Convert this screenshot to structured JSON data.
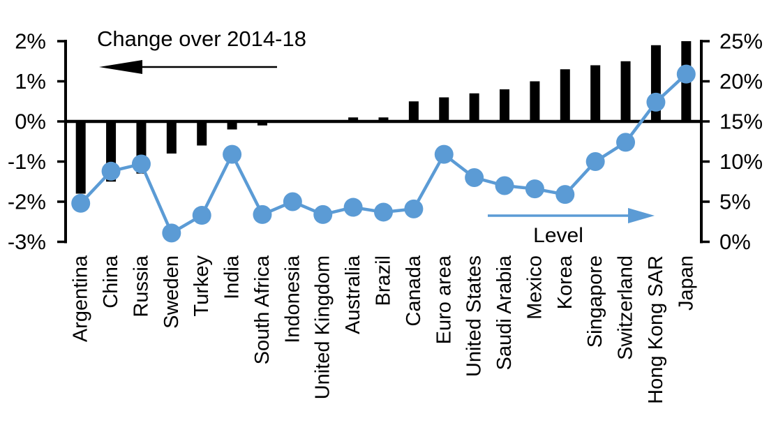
{
  "chart_data": {
    "type": "combo-bar-line-dual-axis",
    "title": "",
    "categories": [
      "Argentina",
      "China",
      "Russia",
      "Sweden",
      "Turkey",
      "India",
      "South Africa",
      "Indonesia",
      "United Kingdom",
      "Australia",
      "Brazil",
      "Canada",
      "Euro area",
      "United States",
      "Saudi Arabia",
      "Mexico",
      "Korea",
      "Singapore",
      "Switzerland",
      "Hong Kong SAR",
      "Japan"
    ],
    "series": [
      {
        "name": "Change over 2014-18",
        "type": "bar",
        "axis": "left",
        "color": "#000000",
        "values": [
          -1.8,
          -1.5,
          -1.3,
          -0.8,
          -0.6,
          -0.2,
          -0.1,
          0.0,
          0.0,
          0.1,
          0.1,
          0.5,
          0.6,
          0.7,
          0.8,
          1.0,
          1.3,
          1.4,
          1.5,
          1.9,
          2.0
        ]
      },
      {
        "name": "Level",
        "type": "line",
        "axis": "right",
        "color": "#5B9BD5",
        "values": [
          4.8,
          8.8,
          9.7,
          1.1,
          3.3,
          10.9,
          3.4,
          5.0,
          3.4,
          4.3,
          3.7,
          4.1,
          10.9,
          8.0,
          7.0,
          6.6,
          5.9,
          10.0,
          12.4,
          17.4,
          20.9
        ]
      }
    ],
    "left_axis": {
      "min": -3,
      "max": 2,
      "tick_step": 1,
      "tick_labels": [
        "2%",
        "1%",
        "0%",
        "-1%",
        "-2%",
        "-3%"
      ],
      "tick_values": [
        2,
        1,
        0,
        -1,
        -2,
        -3
      ]
    },
    "right_axis": {
      "min": 0,
      "max": 25,
      "tick_step": 5,
      "tick_labels": [
        "25%",
        "20%",
        "15%",
        "10%",
        "5%",
        "0%"
      ],
      "tick_values": [
        25,
        20,
        15,
        10,
        5,
        0
      ]
    },
    "annotations": [
      {
        "text": "Change over 2014-18",
        "arrow": "left",
        "color": "#000000"
      },
      {
        "text": "Level",
        "arrow": "right",
        "color": "#5B9BD5"
      }
    ],
    "grid": false,
    "legend_position": "in-plot-annotations",
    "background": "#FFFFFF",
    "zero_baseline_alignment": "left 0% equals right 15%"
  }
}
